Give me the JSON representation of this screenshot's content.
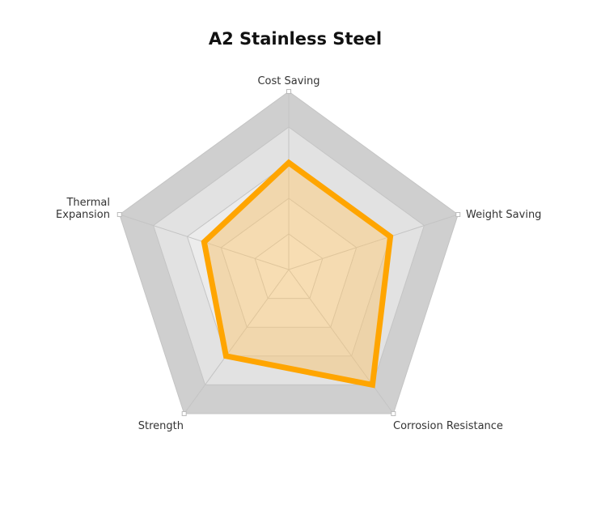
{
  "chart_data": {
    "type": "radar",
    "title": "A2 Stainless Steel",
    "axes": [
      "Cost Saving",
      "Weight Saving",
      "Corrosion Resistance",
      "Strength",
      "Thermal Expansion"
    ],
    "series": [
      {
        "values": [
          60,
          60,
          80,
          60,
          50
        ]
      }
    ],
    "range": [
      0,
      100
    ],
    "levels": 5,
    "colors": {
      "series_line": "#ffa500",
      "series_fill": "#f5c77a",
      "grid_dark": "#cfcfcf",
      "grid_light": "#e2e2e2",
      "grid_line": "#c4c4c4"
    }
  }
}
